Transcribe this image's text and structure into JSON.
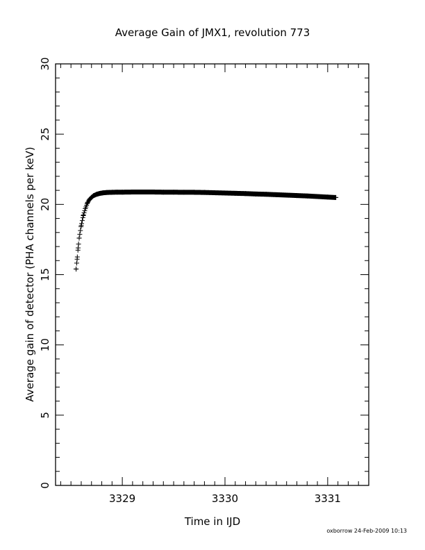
{
  "chart_data": {
    "type": "scatter",
    "title": "Average Gain of JMX1, revolution 773",
    "xlabel": "Time in IJD",
    "ylabel": "Average gain of detector (PHA channels per keV)",
    "footer": "oxborrow 24-Feb-2009 10:13",
    "xlim": [
      3328.35,
      3331.4
    ],
    "ylim": [
      0,
      30
    ],
    "x_ticks": [
      3329,
      3330,
      3331
    ],
    "y_ticks": [
      0,
      5,
      10,
      15,
      20,
      25,
      30
    ],
    "marker": "plus",
    "series": [
      {
        "x": [
          3328.55,
          3328.56,
          3328.57,
          3328.58,
          3328.6,
          3328.62,
          3328.64,
          3328.66,
          3328.68,
          3328.7,
          3328.72,
          3328.75,
          3328.78,
          3328.81,
          3328.85,
          3328.9,
          3328.95,
          3329.0,
          3329.1,
          3329.2,
          3329.3,
          3329.4,
          3329.5,
          3329.6,
          3329.7,
          3329.8,
          3329.9,
          3330.0,
          3330.1,
          3330.2,
          3330.3,
          3330.4,
          3330.5,
          3330.6,
          3330.7,
          3330.8,
          3330.9,
          3331.0,
          3331.08
        ],
        "y": [
          15.4,
          16.1,
          16.9,
          17.6,
          18.5,
          19.2,
          19.7,
          20.1,
          20.35,
          20.5,
          20.62,
          20.72,
          20.78,
          20.82,
          20.85,
          20.86,
          20.87,
          20.87,
          20.88,
          20.88,
          20.88,
          20.87,
          20.87,
          20.86,
          20.86,
          20.85,
          20.83,
          20.81,
          20.79,
          20.77,
          20.74,
          20.72,
          20.69,
          20.66,
          20.63,
          20.6,
          20.56,
          20.52,
          20.49
        ]
      }
    ],
    "grid": false,
    "legend": "none"
  }
}
